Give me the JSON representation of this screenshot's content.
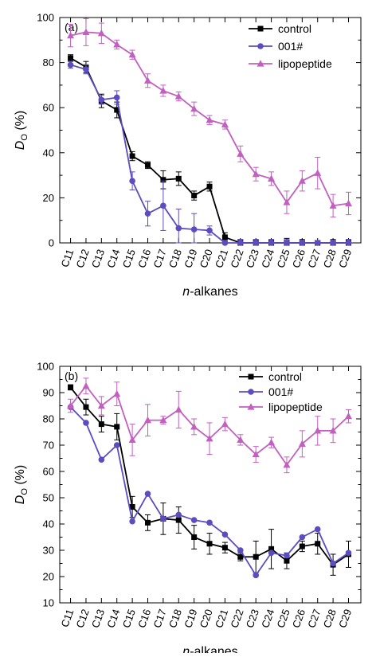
{
  "chart_data": [
    {
      "type": "line",
      "panel_label": "(a)",
      "ylabel_main": "D",
      "ylabel_sub": "O",
      "ylabel_rest": " (%)",
      "xlabel_italic": "n",
      "xlabel_rest": "-alkanes",
      "ylim": [
        0,
        100
      ],
      "yticks": [
        0,
        20,
        40,
        60,
        80,
        100
      ],
      "grid": false,
      "legend_position": "top-right",
      "categories": [
        "C11",
        "C12",
        "C13",
        "C14",
        "C15",
        "C16",
        "C17",
        "C18",
        "C19",
        "C20",
        "C21",
        "C22",
        "C23",
        "C24",
        "C25",
        "C26",
        "C27",
        "C28",
        "C29"
      ],
      "series": [
        {
          "name": "control",
          "color": "#000000",
          "marker": "square",
          "values": [
            82,
            78,
            63,
            59,
            38.5,
            34.5,
            28,
            28.5,
            21,
            25,
            2.5,
            0,
            0,
            0,
            0,
            0,
            0,
            0,
            0
          ],
          "errors": [
            1.5,
            2.5,
            3,
            3.5,
            2,
            1.5,
            4,
            3,
            2,
            2,
            2,
            1.5,
            1.5,
            1.5,
            2,
            1.5,
            1,
            1.5,
            1.5
          ]
        },
        {
          "name": "001#",
          "color": "#5b4cc0",
          "marker": "circle",
          "values": [
            79,
            77,
            63.5,
            64.5,
            27.5,
            13,
            16.5,
            6.5,
            6,
            5.5,
            0,
            0,
            0,
            0,
            0,
            0,
            0,
            0,
            0
          ],
          "errors": [
            1.5,
            2,
            2,
            3,
            4,
            5.5,
            11,
            8.5,
            7,
            2,
            1,
            1.5,
            1.5,
            1.5,
            1.5,
            1,
            1,
            1,
            1.5
          ]
        },
        {
          "name": "lipopeptide",
          "color": "#c25fc0",
          "marker": "triangle",
          "values": [
            92,
            93.5,
            93,
            88,
            83.5,
            72,
            67.5,
            65,
            59.5,
            54.5,
            52.5,
            39.5,
            30.5,
            28.5,
            18,
            27.5,
            31,
            16.5,
            17.5
          ],
          "errors": [
            5,
            6,
            4.5,
            2,
            2,
            3,
            2.5,
            2,
            3,
            2,
            2,
            3.5,
            3,
            3,
            5,
            4.5,
            7,
            5,
            5
          ]
        }
      ]
    },
    {
      "type": "line",
      "panel_label": "(b)",
      "ylabel_main": "D",
      "ylabel_sub": "O",
      "ylabel_rest": " (%)",
      "xlabel_italic": "n",
      "xlabel_rest": "-alkanes",
      "ylim": [
        10,
        100
      ],
      "yticks": [
        10,
        20,
        30,
        40,
        50,
        60,
        70,
        80,
        90,
        100
      ],
      "grid": false,
      "legend_position": "top-right",
      "categories": [
        "C11",
        "C12",
        "C13",
        "C14",
        "C15",
        "C16",
        "C17",
        "C18",
        "C19",
        "C20",
        "C21",
        "C22",
        "C23",
        "C24",
        "C25",
        "C26",
        "C27",
        "C28",
        "C29"
      ],
      "series": [
        {
          "name": "control",
          "color": "#000000",
          "marker": "square",
          "values": [
            92,
            84.5,
            78,
            77,
            46.5,
            40.5,
            42,
            41.5,
            35,
            32.5,
            31,
            27.5,
            27.5,
            30.5,
            26,
            31.5,
            32.5,
            24.5,
            28.5
          ],
          "errors": [
            1,
            3,
            3,
            5,
            4,
            3,
            6,
            5,
            4.5,
            4,
            2,
            1.5,
            6,
            7.5,
            3,
            2,
            4,
            4,
            5
          ]
        },
        {
          "name": "001#",
          "color": "#5b4cc0",
          "marker": "circle",
          "values": [
            84.5,
            78.5,
            64.5,
            70,
            41,
            51.5,
            42,
            43.5,
            41.5,
            40.5,
            36,
            30,
            20.5,
            29,
            28,
            35,
            38,
            25,
            29
          ]
        },
        {
          "name": "lipopeptide",
          "color": "#c25fc0",
          "marker": "triangle",
          "values": [
            85,
            92.5,
            85,
            89.5,
            72,
            79.5,
            79.5,
            83.5,
            77,
            72.5,
            78,
            72,
            66.5,
            71,
            62.5,
            70.5,
            75.5,
            75.5,
            81
          ],
          "errors": [
            2.5,
            3,
            3.5,
            4.5,
            6,
            6,
            1.5,
            7,
            3,
            6,
            2.5,
            2,
            3,
            2,
            3,
            5,
            5.5,
            4.5,
            2.5
          ]
        }
      ]
    }
  ]
}
